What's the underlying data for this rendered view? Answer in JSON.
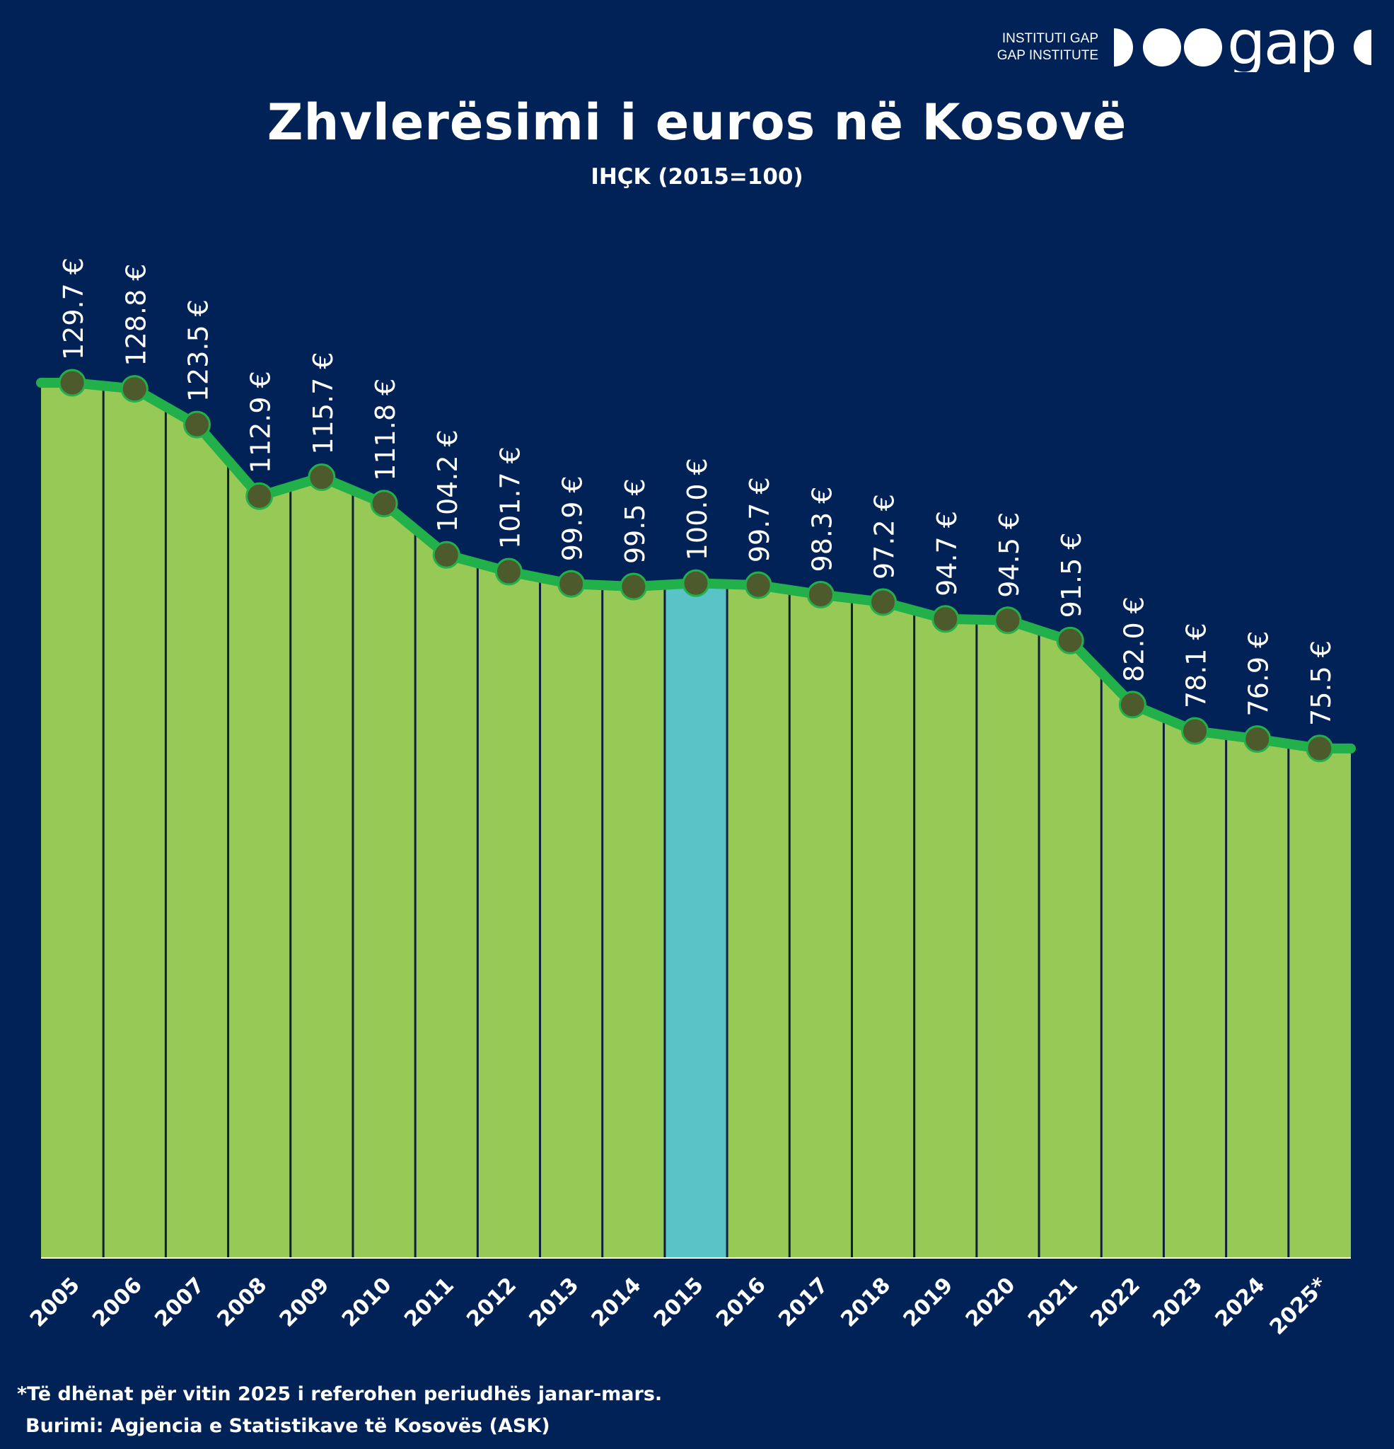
{
  "brand": {
    "line1": "INSTITUTI GAP",
    "line2": "GAP INSTITUTE",
    "wordmark": "gap"
  },
  "chart_data": {
    "type": "area",
    "title": "Zhvlerësimi i euros në Kosovë",
    "subtitle": "IHÇK (2015=100)",
    "categories": [
      "2005",
      "2006",
      "2007",
      "2008",
      "2009",
      "2010",
      "2011",
      "2012",
      "2013",
      "2014",
      "2015",
      "2016",
      "2017",
      "2018",
      "2019",
      "2020",
      "2021",
      "2022",
      "2023",
      "2024",
      "2025*"
    ],
    "values": [
      129.7,
      128.8,
      123.5,
      112.9,
      115.7,
      111.8,
      104.2,
      101.7,
      99.9,
      99.5,
      100.0,
      99.7,
      98.3,
      97.2,
      94.7,
      94.5,
      91.5,
      82.0,
      78.1,
      76.9,
      75.5
    ],
    "value_labels": [
      "129.7 €",
      "128.8 €",
      "123.5 €",
      "112.9 €",
      "115.7 €",
      "111.8 €",
      "104.2 €",
      "101.7 €",
      "99.9 €",
      "99.5 €",
      "100.0 €",
      "99.7 €",
      "98.3 €",
      "97.2 €",
      "94.7 €",
      "94.5 €",
      "91.5 €",
      "82.0 €",
      "78.1 €",
      "76.9 €",
      "75.5 €"
    ],
    "highlight": "2015",
    "ylim": [
      0,
      130
    ],
    "grid": false,
    "colors": {
      "background": "#012256",
      "area": "#97c957",
      "highlight": "#5ac3c8",
      "line": "#22b04b",
      "marker": "#4d5a2c",
      "divider": "#0d1f3a"
    }
  },
  "footnote": "*Të dhënat për vitin 2025 i referohen periudhës janar-mars.",
  "source": "Burimi: Agjencia e Statistikave të Kosovës (ASK)"
}
